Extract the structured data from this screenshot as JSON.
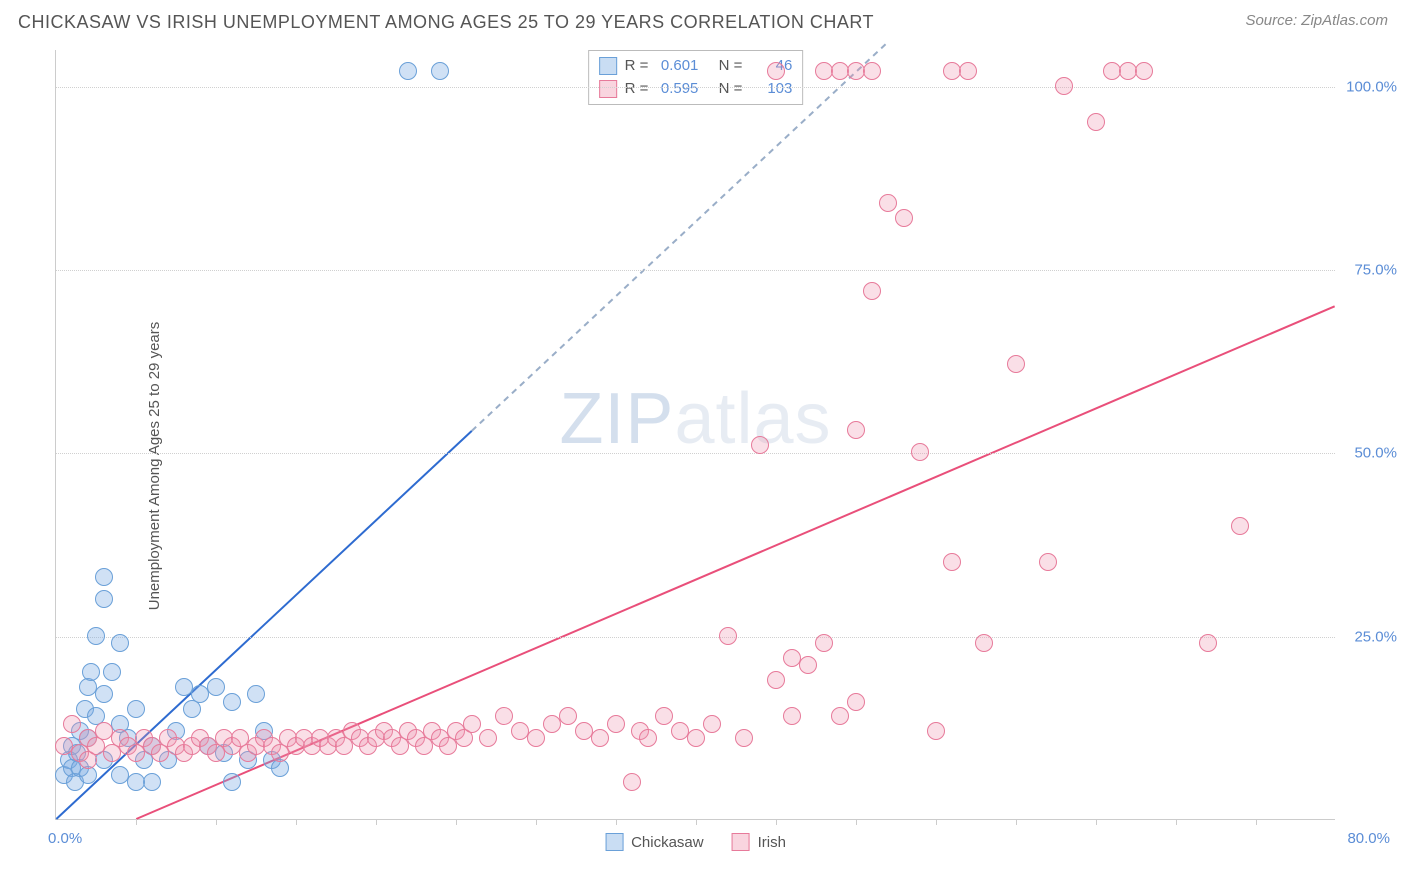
{
  "title": "CHICKASAW VS IRISH UNEMPLOYMENT AMONG AGES 25 TO 29 YEARS CORRELATION CHART",
  "source": "Source: ZipAtlas.com",
  "ylabel": "Unemployment Among Ages 25 to 29 years",
  "watermark_zip": "ZIP",
  "watermark_rest": "atlas",
  "chart": {
    "type": "scatter-correlation",
    "background_color": "#ffffff",
    "grid_color": "#d0d0d0",
    "axis_color": "#cccccc",
    "tick_label_color": "#5b8dd6",
    "xlim": [
      0,
      80
    ],
    "ylim": [
      0,
      105
    ],
    "ytick_labels": [
      "25.0%",
      "50.0%",
      "75.0%",
      "100.0%"
    ],
    "ytick_values": [
      25,
      50,
      75,
      100
    ],
    "xtick_labels_ends": [
      "0.0%",
      "80.0%"
    ],
    "x_minor_ticks": [
      5,
      10,
      15,
      20,
      25,
      30,
      35,
      40,
      45,
      50,
      55,
      60,
      65,
      70,
      75
    ],
    "marker_radius": 9,
    "marker_fill_opacity": 0.35
  },
  "series": [
    {
      "name": "Chickasaw",
      "color_fill": "#78aae1",
      "color_stroke": "#6aa0d8",
      "R": "0.601",
      "N": "46",
      "trend": {
        "x1": 0,
        "y1": 0,
        "x2": 26,
        "y2": 53,
        "x2_dash": 52,
        "y2_dash": 106,
        "solid_color": "#2e6bd0",
        "dash_color": "#9aaec8"
      },
      "points": [
        [
          0.5,
          6
        ],
        [
          0.8,
          8
        ],
        [
          1,
          7
        ],
        [
          1,
          10
        ],
        [
          1.2,
          5
        ],
        [
          1.3,
          9
        ],
        [
          1.5,
          12
        ],
        [
          1.5,
          7
        ],
        [
          1.8,
          15
        ],
        [
          2,
          18
        ],
        [
          2,
          11
        ],
        [
          2.2,
          20
        ],
        [
          2.5,
          25
        ],
        [
          2.5,
          14
        ],
        [
          3,
          33
        ],
        [
          3,
          30
        ],
        [
          3,
          17
        ],
        [
          3.5,
          20
        ],
        [
          4,
          24
        ],
        [
          4,
          13
        ],
        [
          4.5,
          11
        ],
        [
          5,
          15
        ],
        [
          5.5,
          8
        ],
        [
          6,
          10
        ],
        [
          6,
          5
        ],
        [
          7,
          8
        ],
        [
          7.5,
          12
        ],
        [
          8,
          18
        ],
        [
          8.5,
          15
        ],
        [
          9,
          17
        ],
        [
          9.5,
          10
        ],
        [
          10,
          18
        ],
        [
          10.5,
          9
        ],
        [
          11,
          16
        ],
        [
          11,
          5
        ],
        [
          12,
          8
        ],
        [
          12.5,
          17
        ],
        [
          13,
          12
        ],
        [
          13.5,
          8
        ],
        [
          14,
          7
        ],
        [
          22,
          102
        ],
        [
          24,
          102
        ],
        [
          3,
          8
        ],
        [
          4,
          6
        ],
        [
          2,
          6
        ],
        [
          5,
          5
        ]
      ]
    },
    {
      "name": "Irish",
      "color_fill": "#f096af",
      "color_stroke": "#e77a9a",
      "R": "0.595",
      "N": "103",
      "trend": {
        "x1": 5,
        "y1": 0,
        "x2": 80,
        "y2": 70,
        "solid_color": "#e94f7a"
      },
      "points": [
        [
          0.5,
          10
        ],
        [
          1,
          13
        ],
        [
          1.5,
          9
        ],
        [
          2,
          11
        ],
        [
          2,
          8
        ],
        [
          2.5,
          10
        ],
        [
          3,
          12
        ],
        [
          3.5,
          9
        ],
        [
          4,
          11
        ],
        [
          4.5,
          10
        ],
        [
          5,
          9
        ],
        [
          5.5,
          11
        ],
        [
          6,
          10
        ],
        [
          6.5,
          9
        ],
        [
          7,
          11
        ],
        [
          7.5,
          10
        ],
        [
          8,
          9
        ],
        [
          8.5,
          10
        ],
        [
          9,
          11
        ],
        [
          9.5,
          10
        ],
        [
          10,
          9
        ],
        [
          10.5,
          11
        ],
        [
          11,
          10
        ],
        [
          11.5,
          11
        ],
        [
          12,
          9
        ],
        [
          12.5,
          10
        ],
        [
          13,
          11
        ],
        [
          13.5,
          10
        ],
        [
          14,
          9
        ],
        [
          14.5,
          11
        ],
        [
          15,
          10
        ],
        [
          15.5,
          11
        ],
        [
          16,
          10
        ],
        [
          16.5,
          11
        ],
        [
          17,
          10
        ],
        [
          17.5,
          11
        ],
        [
          18,
          10
        ],
        [
          18.5,
          12
        ],
        [
          19,
          11
        ],
        [
          19.5,
          10
        ],
        [
          20,
          11
        ],
        [
          20.5,
          12
        ],
        [
          21,
          11
        ],
        [
          21.5,
          10
        ],
        [
          22,
          12
        ],
        [
          22.5,
          11
        ],
        [
          23,
          10
        ],
        [
          23.5,
          12
        ],
        [
          24,
          11
        ],
        [
          24.5,
          10
        ],
        [
          25,
          12
        ],
        [
          25.5,
          11
        ],
        [
          26,
          13
        ],
        [
          27,
          11
        ],
        [
          28,
          14
        ],
        [
          29,
          12
        ],
        [
          30,
          11
        ],
        [
          31,
          13
        ],
        [
          32,
          14
        ],
        [
          33,
          12
        ],
        [
          34,
          11
        ],
        [
          35,
          13
        ],
        [
          36,
          5
        ],
        [
          36.5,
          12
        ],
        [
          37,
          11
        ],
        [
          38,
          14
        ],
        [
          39,
          12
        ],
        [
          40,
          11
        ],
        [
          41,
          13
        ],
        [
          42,
          25
        ],
        [
          43,
          11
        ],
        [
          44,
          51
        ],
        [
          45,
          19
        ],
        [
          46,
          14
        ],
        [
          46,
          22
        ],
        [
          47,
          21
        ],
        [
          48,
          24
        ],
        [
          49,
          14
        ],
        [
          50,
          16
        ],
        [
          51,
          72
        ],
        [
          50,
          53
        ],
        [
          52,
          84
        ],
        [
          53,
          82
        ],
        [
          54,
          50
        ],
        [
          55,
          12
        ],
        [
          56,
          35
        ],
        [
          58,
          24
        ],
        [
          60,
          62
        ],
        [
          62,
          35
        ],
        [
          63,
          100
        ],
        [
          65,
          95
        ],
        [
          66,
          102
        ],
        [
          67,
          102
        ],
        [
          68,
          102
        ],
        [
          48,
          102
        ],
        [
          49,
          102
        ],
        [
          50,
          102
        ],
        [
          51,
          102
        ],
        [
          56,
          102
        ],
        [
          57,
          102
        ],
        [
          45,
          102
        ],
        [
          72,
          24
        ],
        [
          74,
          40
        ]
      ]
    }
  ],
  "stat_legend": {
    "r_label": "R =",
    "n_label": "N ="
  },
  "bottom_legend": [
    "Chickasaw",
    "Irish"
  ]
}
